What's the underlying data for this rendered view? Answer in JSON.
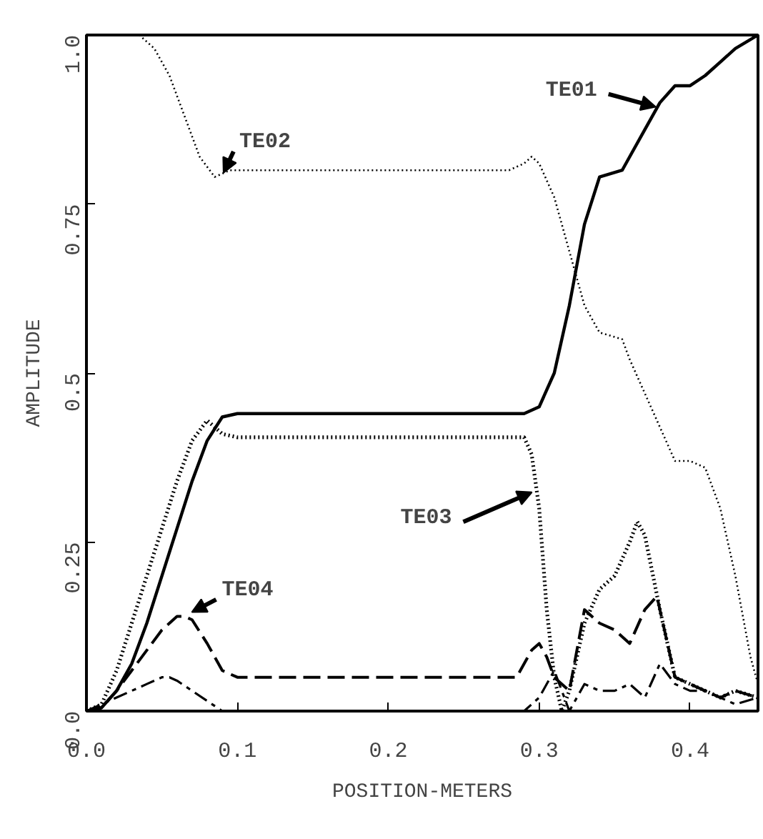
{
  "chart_data": {
    "type": "line",
    "xlabel": "POSITION-METERS",
    "ylabel": "AMPLITUDE",
    "xlim": [
      0,
      0.445
    ],
    "ylim": [
      0,
      1
    ],
    "xticks": [
      {
        "value": 0,
        "label": "0.0"
      },
      0.1,
      0.2,
      0.3,
      0.4
    ],
    "yticks": [
      {
        "value": 0,
        "label": "0.0"
      },
      0.25,
      0.5,
      0.75,
      {
        "value": 1,
        "label": "1.0"
      }
    ],
    "marker": "none",
    "series": [
      {
        "color": "#000000",
        "line_style": "solid",
        "x": [
          0,
          0.01,
          0.02,
          0.03,
          0.04,
          0.05,
          0.06,
          0.07,
          0.08,
          0.09,
          0.1,
          0.2,
          0.29,
          0.3,
          0.31,
          0.32,
          0.325,
          0.33,
          0.34,
          0.355,
          0.36,
          0.37,
          0.38,
          0.39,
          0.4,
          0.41,
          0.42,
          0.43,
          0.445
        ],
        "values": [
          0,
          0.005,
          0.03,
          0.07,
          0.13,
          0.2,
          0.27,
          0.34,
          0.4,
          0.435,
          0.44,
          0.44,
          0.44,
          0.45,
          0.5,
          0.6,
          0.66,
          0.72,
          0.79,
          0.8,
          0.82,
          0.86,
          0.9,
          0.925,
          0.925,
          0.94,
          0.96,
          0.98,
          1.0
        ]
      },
      {
        "color": "#000000",
        "line_style": "dotted",
        "x": [
          0.035,
          0.045,
          0.055,
          0.065,
          0.075,
          0.085,
          0.095,
          0.1,
          0.2,
          0.28,
          0.29,
          0.295,
          0.3,
          0.31,
          0.32,
          0.33,
          0.34,
          0.355,
          0.36,
          0.37,
          0.38,
          0.39,
          0.4,
          0.41,
          0.42,
          0.43,
          0.44,
          0.445
        ],
        "values": [
          1.0,
          0.98,
          0.94,
          0.88,
          0.82,
          0.79,
          0.8,
          0.8,
          0.8,
          0.8,
          0.81,
          0.82,
          0.81,
          0.76,
          0.68,
          0.6,
          0.56,
          0.55,
          0.52,
          0.47,
          0.42,
          0.37,
          0.37,
          0.36,
          0.3,
          0.2,
          0.08,
          0.04
        ]
      },
      {
        "color": "#000000",
        "line_style": "dotted",
        "x": [
          0,
          0.01,
          0.02,
          0.03,
          0.04,
          0.05,
          0.06,
          0.07,
          0.08,
          0.09,
          0.1,
          0.2,
          0.29,
          0.295,
          0.3,
          0.305,
          0.31,
          0.315,
          0.32,
          0.33,
          0.34,
          0.35,
          0.36,
          0.365,
          0.37,
          0.38,
          0.39,
          0.4,
          0.41,
          0.42,
          0.43,
          0.445
        ],
        "values": [
          0,
          0.01,
          0.06,
          0.13,
          0.2,
          0.27,
          0.34,
          0.4,
          0.43,
          0.41,
          0.405,
          0.405,
          0.405,
          0.38,
          0.3,
          0.15,
          0.05,
          0,
          0.03,
          0.13,
          0.18,
          0.2,
          0.25,
          0.28,
          0.26,
          0.15,
          0.05,
          0.04,
          0.03,
          0.02,
          0.03,
          0.02
        ]
      },
      {
        "color": "#000000",
        "line_style": "dashed",
        "x": [
          0,
          0.01,
          0.02,
          0.03,
          0.04,
          0.05,
          0.06,
          0.065,
          0.07,
          0.08,
          0.09,
          0.1,
          0.2,
          0.285,
          0.295,
          0.3,
          0.305,
          0.31,
          0.315,
          0.32,
          0.33,
          0.34,
          0.35,
          0.36,
          0.37,
          0.378,
          0.385,
          0.39,
          0.4,
          0.41,
          0.42,
          0.43,
          0.445
        ],
        "values": [
          0,
          0.005,
          0.03,
          0.06,
          0.09,
          0.12,
          0.14,
          0.14,
          0.135,
          0.1,
          0.06,
          0.05,
          0.05,
          0.05,
          0.09,
          0.1,
          0.08,
          0.05,
          0.04,
          0.03,
          0.15,
          0.13,
          0.12,
          0.1,
          0.15,
          0.17,
          0.1,
          0.05,
          0.04,
          0.03,
          0.02,
          0.03,
          0.02
        ]
      },
      {
        "color": "#000000",
        "line_style": "dashdot",
        "x": [
          0,
          0.01,
          0.02,
          0.03,
          0.04,
          0.05,
          0.055,
          0.06,
          0.07,
          0.08,
          0.09,
          0.2,
          0.29,
          0.3,
          0.31,
          0.315,
          0.32,
          0.33,
          0.34,
          0.35,
          0.36,
          0.37,
          0.38,
          0.39,
          0.4,
          0.41,
          0.42,
          0.43,
          0.445
        ],
        "values": [
          0,
          0.01,
          0.02,
          0.03,
          0.04,
          0.05,
          0.05,
          0.045,
          0.03,
          0.015,
          0,
          0,
          0,
          0.02,
          0.06,
          0.03,
          0,
          0.04,
          0.03,
          0.03,
          0.04,
          0.02,
          0.07,
          0.04,
          0.03,
          0.03,
          0.02,
          0.01,
          0.02
        ]
      }
    ],
    "annotations": [
      {
        "text": "TE02",
        "x": 0.088,
        "y": 0.79
      },
      {
        "text": "TE01",
        "x": 0.38,
        "y": 0.9
      },
      {
        "text": "TE03",
        "x": 0.298,
        "y": 0.33
      },
      {
        "text": "TE04",
        "x": 0.067,
        "y": 0.14
      }
    ]
  }
}
